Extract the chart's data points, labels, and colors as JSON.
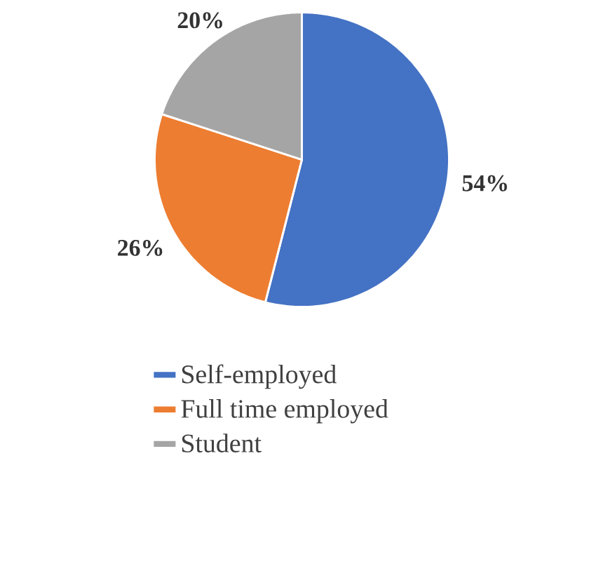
{
  "chart_data": {
    "type": "pie",
    "categories": [
      "Self-employed",
      "Full time employed",
      "Student"
    ],
    "values": [
      54,
      26,
      20
    ],
    "colors": [
      "#4472c4",
      "#ed7d31",
      "#a5a5a5"
    ],
    "value_labels": [
      "54%",
      "26%",
      "20%"
    ],
    "legend": "bottom"
  }
}
